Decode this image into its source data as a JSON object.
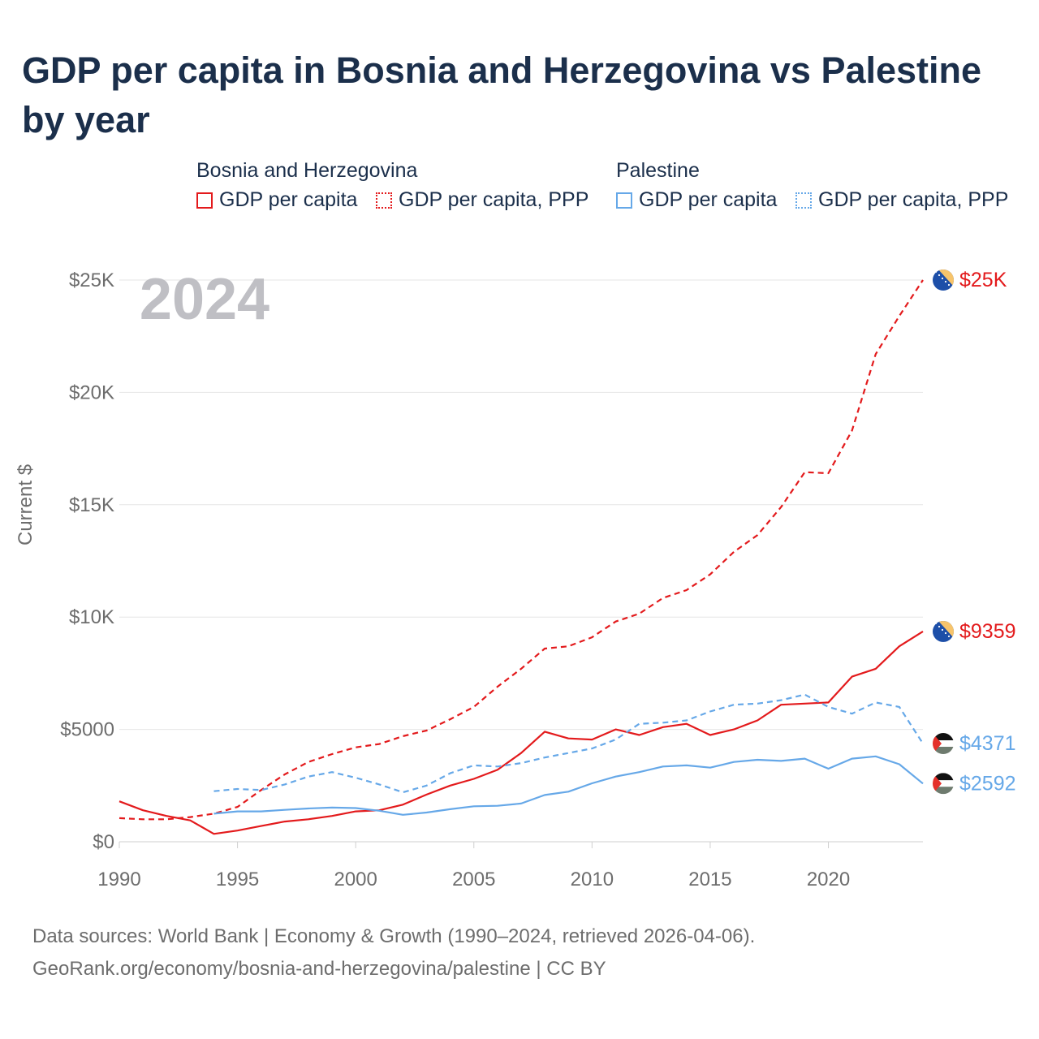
{
  "title": "GDP per capita in Bosnia and Herzegovina vs Palestine by year",
  "legend": {
    "groups": [
      {
        "name": "Bosnia and Herzegovina",
        "color": "#e31a1c",
        "items": [
          {
            "label": "GDP per capita",
            "style": "solid"
          },
          {
            "label": "GDP per capita, PPP",
            "style": "dotted"
          }
        ]
      },
      {
        "name": "Palestine",
        "color": "#66a8e8",
        "items": [
          {
            "label": "GDP per capita",
            "style": "solid"
          },
          {
            "label": "GDP per capita, PPP",
            "style": "dotted"
          }
        ]
      }
    ]
  },
  "source": {
    "line1": "Data sources: World Bank | Economy & Growth (1990–2024, retrieved 2026-04-06).",
    "line2": "GeoRank.org/economy/bosnia-and-herzegovina/palestine | CC BY"
  },
  "chart_data": {
    "type": "line",
    "year_label": "2024",
    "ylabel": "Current $",
    "xlim": [
      1990,
      2024
    ],
    "ylim": [
      0,
      25000
    ],
    "xticks": [
      1990,
      1995,
      2000,
      2005,
      2010,
      2015,
      2020
    ],
    "xtick_labels": [
      "1990",
      "1995",
      "2000",
      "2005",
      "2010",
      "2015",
      "2020"
    ],
    "yticks": [
      0,
      5000,
      10000,
      15000,
      20000,
      25000
    ],
    "ytick_labels": [
      "$0",
      "$5000",
      "$10K",
      "$15K",
      "$20K",
      "$25K"
    ],
    "grid": true,
    "series": [
      {
        "name": "Bosnia and Herzegovina GDP per capita",
        "country": "Bosnia and Herzegovina",
        "color": "#e31a1c",
        "dash": "solid",
        "end_label": "$9359",
        "flag": "bosnia-flag-icon",
        "x": [
          1990,
          1991,
          1992,
          1993,
          1994,
          1995,
          1996,
          1997,
          1998,
          1999,
          2000,
          2001,
          2002,
          2003,
          2004,
          2005,
          2006,
          2007,
          2008,
          2009,
          2010,
          2011,
          2012,
          2013,
          2014,
          2015,
          2016,
          2017,
          2018,
          2019,
          2020,
          2021,
          2022,
          2023,
          2024
        ],
        "values": [
          1800,
          1400,
          1150,
          950,
          350,
          500,
          700,
          900,
          1000,
          1150,
          1350,
          1400,
          1650,
          2100,
          2500,
          2800,
          3200,
          3950,
          4900,
          4600,
          4550,
          5000,
          4750,
          5100,
          5250,
          4750,
          5000,
          5400,
          6100,
          6150,
          6200,
          7350,
          7700,
          8700,
          9359
        ]
      },
      {
        "name": "Bosnia and Herzegovina GDP per capita, PPP",
        "country": "Bosnia and Herzegovina",
        "color": "#e31a1c",
        "dash": "dashed",
        "end_label": "$25K",
        "flag": "bosnia-flag-icon",
        "x": [
          1990,
          1991,
          1992,
          1993,
          1994,
          1995,
          1996,
          1997,
          1998,
          1999,
          2000,
          2001,
          2002,
          2003,
          2004,
          2005,
          2006,
          2007,
          2008,
          2009,
          2010,
          2011,
          2012,
          2013,
          2014,
          2015,
          2016,
          2017,
          2018,
          2019,
          2020,
          2021,
          2022,
          2023,
          2024
        ],
        "values": [
          1050,
          1000,
          1000,
          1100,
          1250,
          1550,
          2300,
          3000,
          3550,
          3900,
          4200,
          4350,
          4700,
          4950,
          5450,
          6000,
          6900,
          7700,
          8600,
          8700,
          9100,
          9800,
          10150,
          10850,
          11200,
          11900,
          12900,
          13650,
          14900,
          16450,
          16400,
          18300,
          21700,
          23400,
          25000
        ]
      },
      {
        "name": "Palestine GDP per capita",
        "country": "Palestine",
        "color": "#66a8e8",
        "dash": "solid",
        "end_label": "$2592",
        "flag": "palestine-flag-icon",
        "x": [
          1994,
          1995,
          1996,
          1997,
          1998,
          1999,
          2000,
          2001,
          2002,
          2003,
          2004,
          2005,
          2006,
          2007,
          2008,
          2009,
          2010,
          2011,
          2012,
          2013,
          2014,
          2015,
          2016,
          2017,
          2018,
          2019,
          2020,
          2021,
          2022,
          2023,
          2024
        ],
        "values": [
          1250,
          1350,
          1350,
          1420,
          1480,
          1520,
          1500,
          1380,
          1200,
          1300,
          1450,
          1580,
          1600,
          1700,
          2080,
          2230,
          2600,
          2900,
          3100,
          3350,
          3400,
          3300,
          3550,
          3650,
          3600,
          3700,
          3250,
          3700,
          3800,
          3450,
          2592
        ]
      },
      {
        "name": "Palestine GDP per capita, PPP",
        "country": "Palestine",
        "color": "#66a8e8",
        "dash": "dashed",
        "end_label": "$4371",
        "flag": "palestine-flag-icon",
        "x": [
          1994,
          1995,
          1996,
          1997,
          1998,
          1999,
          2000,
          2001,
          2002,
          2003,
          2004,
          2005,
          2006,
          2007,
          2008,
          2009,
          2010,
          2011,
          2012,
          2013,
          2014,
          2015,
          2016,
          2017,
          2018,
          2019,
          2020,
          2021,
          2022,
          2023,
          2024
        ],
        "values": [
          2250,
          2350,
          2300,
          2550,
          2900,
          3100,
          2850,
          2550,
          2200,
          2500,
          3050,
          3400,
          3350,
          3500,
          3750,
          3950,
          4150,
          4550,
          5250,
          5300,
          5400,
          5800,
          6100,
          6150,
          6300,
          6550,
          6000,
          5700,
          6200,
          6000,
          4371
        ]
      }
    ]
  }
}
